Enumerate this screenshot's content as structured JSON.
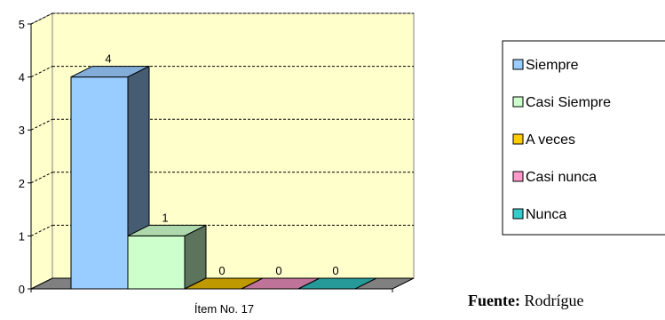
{
  "chart_data": {
    "type": "bar",
    "categories": [
      "Ítem No. 17"
    ],
    "series": [
      {
        "name": "Siempre",
        "values": [
          4
        ],
        "color": "#99ccff"
      },
      {
        "name": "Casi Siempre",
        "values": [
          1
        ],
        "color": "#ccffcc"
      },
      {
        "name": "A veces",
        "values": [
          0
        ],
        "color": "#ffcc00"
      },
      {
        "name": "Casi nunca",
        "values": [
          0
        ],
        "color": "#ff99cc"
      },
      {
        "name": "Nunca",
        "values": [
          0
        ],
        "color": "#33cccc"
      }
    ],
    "ylim": [
      0,
      5
    ],
    "yticks": [
      "0",
      "1",
      "2",
      "3",
      "4",
      "5"
    ],
    "data_labels": [
      "4",
      "1",
      "0",
      "0",
      "0"
    ],
    "grid": true,
    "three_d": true,
    "plot_background": "#ffffcc",
    "floor_color": "#808080",
    "legend_position": "right"
  },
  "source": {
    "label": "Fuente:",
    "text": " Rodrígue"
  }
}
